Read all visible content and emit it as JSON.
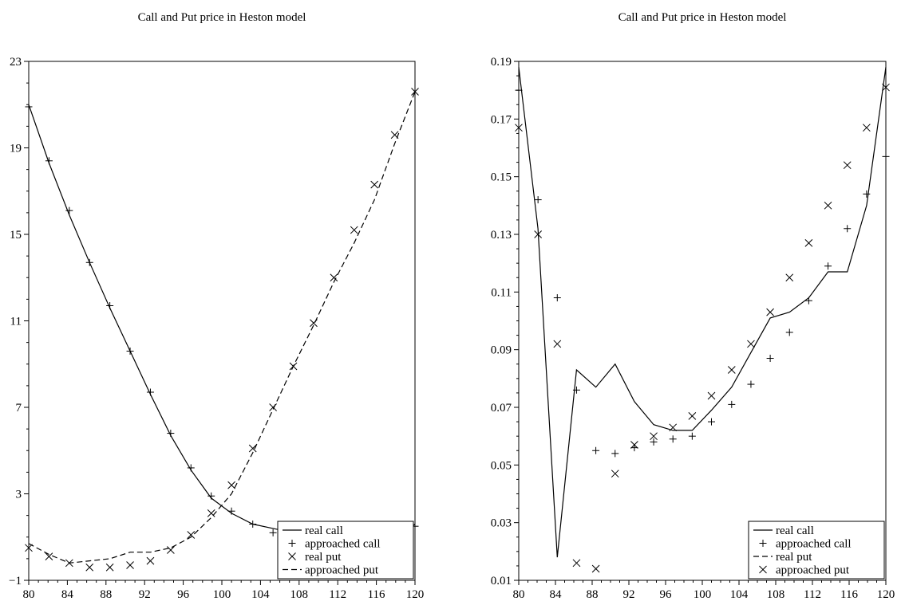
{
  "chart_data": [
    {
      "type": "line",
      "title": "Call and Put price in Heston model",
      "xlabel": "",
      "ylabel": "",
      "xlim": [
        80,
        120
      ],
      "ylim": [
        -1,
        23
      ],
      "x_ticks": [
        "80",
        "84",
        "88",
        "92",
        "96",
        "100",
        "104",
        "108",
        "112",
        "116",
        "120"
      ],
      "y_ticks": [
        "−1",
        "3",
        "7",
        "11",
        "15",
        "19",
        "23"
      ],
      "legend_position": "bottom-right",
      "legend": [
        "real call",
        "approached call",
        "real put",
        "approached put"
      ],
      "series": [
        {
          "name": "real call",
          "style": "solid",
          "marker": "none",
          "x": [
            80,
            82.1,
            84.2,
            86.3,
            88.4,
            90.5,
            92.6,
            94.7,
            96.8,
            98.9,
            101,
            103.2,
            105.3,
            107.4,
            109.5,
            111.6,
            113.7,
            115.8,
            117.9,
            120
          ],
          "y": [
            21,
            18.3,
            15.9,
            13.7,
            11.6,
            9.6,
            7.6,
            5.7,
            4.1,
            2.8,
            2.1,
            1.6,
            1.4,
            1.2,
            1.0,
            0.9,
            0.8,
            0.6,
            0.8,
            1.6
          ]
        },
        {
          "name": "approached call",
          "style": "none",
          "marker": "plus",
          "x": [
            80,
            82.1,
            84.2,
            86.3,
            88.4,
            90.5,
            92.6,
            94.7,
            96.8,
            98.9,
            101,
            103.2,
            105.3,
            106.8,
            107.4,
            109.5,
            111.6,
            113.7,
            115.8,
            117.9,
            120
          ],
          "y": [
            20.9,
            18.4,
            16.1,
            13.7,
            11.7,
            9.6,
            7.7,
            5.8,
            4.2,
            2.9,
            2.2,
            1.6,
            1.2,
            1.1,
            0.9,
            0.8,
            0.7,
            0.8,
            0.8,
            0.8,
            1.5
          ]
        },
        {
          "name": "real put",
          "style": "none",
          "marker": "x",
          "x": [
            80,
            82.1,
            84.2,
            86.3,
            88.4,
            90.5,
            92.6,
            94.7,
            96.8,
            98.9,
            101,
            103.2,
            105.3,
            107.4,
            109.5,
            111.6,
            113.7,
            115.8,
            117.9,
            120
          ],
          "y": [
            0.5,
            0.1,
            -0.2,
            -0.4,
            -0.4,
            -0.3,
            -0.1,
            0.4,
            1.1,
            2.1,
            3.4,
            5.1,
            7.0,
            8.9,
            10.9,
            13.0,
            15.2,
            17.3,
            19.6,
            21.6
          ]
        },
        {
          "name": "approached put",
          "style": "dashed",
          "marker": "none",
          "x": [
            80,
            82.1,
            84.2,
            86.3,
            88.4,
            90.5,
            92.6,
            94.7,
            96.8,
            98.9,
            101,
            103.2,
            105.3,
            107.4,
            109.5,
            111.6,
            113.7,
            115.8,
            117.9,
            120
          ],
          "y": [
            0.7,
            0.2,
            -0.2,
            -0.1,
            0,
            0.3,
            0.3,
            0.5,
            1.0,
            1.9,
            3.0,
            4.9,
            6.9,
            8.9,
            10.8,
            12.8,
            14.6,
            16.6,
            19.2,
            21.6
          ]
        }
      ]
    },
    {
      "type": "line",
      "title": "Call and Put price in Heston model",
      "xlabel": "",
      "ylabel": "",
      "xlim": [
        80,
        120
      ],
      "ylim": [
        0.01,
        0.19
      ],
      "x_ticks": [
        "80",
        "84",
        "88",
        "92",
        "96",
        "100",
        "104",
        "108",
        "112",
        "116",
        "120"
      ],
      "y_ticks": [
        "0.01",
        "0.03",
        "0.05",
        "0.07",
        "0.09",
        "0.11",
        "0.13",
        "0.15",
        "0.17",
        "0.19"
      ],
      "legend_position": "bottom-right",
      "legend": [
        "real call",
        "approached call",
        "real put",
        "approached put"
      ],
      "series": [
        {
          "name": "real call",
          "style": "solid",
          "marker": "none",
          "x": [
            80,
            82.1,
            84.2,
            86.3,
            88.4,
            90.5,
            92.6,
            94.7,
            96.8,
            98.9,
            101,
            103.2,
            105.3,
            107.4,
            109.5,
            111.6,
            113.7,
            115.8,
            117.9,
            120
          ],
          "y": [
            0.188,
            0.132,
            0.018,
            0.083,
            0.077,
            0.085,
            0.072,
            0.064,
            0.062,
            0.062,
            0.069,
            0.077,
            0.089,
            0.101,
            0.103,
            0.108,
            0.117,
            0.117,
            0.14,
            0.188
          ]
        },
        {
          "name": "approached call",
          "style": "none",
          "marker": "plus",
          "x": [
            80,
            82.1,
            84.2,
            86.3,
            88.4,
            90.5,
            92.6,
            94.7,
            96.8,
            98.9,
            101,
            103.2,
            105.3,
            107.4,
            109.5,
            111.6,
            113.7,
            115.8,
            117.9,
            120
          ],
          "y": [
            0.18,
            0.142,
            0.108,
            0.076,
            0.055,
            0.054,
            0.056,
            0.058,
            0.059,
            0.06,
            0.065,
            0.071,
            0.078,
            0.087,
            0.096,
            0.107,
            0.119,
            0.132,
            0.144,
            0.157
          ]
        },
        {
          "name": "real put",
          "style": "dashed",
          "marker": "none",
          "x": [],
          "y": []
        },
        {
          "name": "approached put",
          "style": "none",
          "marker": "x",
          "x": [
            80,
            82.1,
            84.2,
            86.3,
            88.4,
            90.5,
            92.6,
            94.7,
            96.8,
            98.9,
            101,
            103.2,
            105.3,
            107.4,
            109.5,
            111.6,
            113.7,
            115.8,
            117.9,
            120
          ],
          "y": [
            0.167,
            0.13,
            0.092,
            0.016,
            0.014,
            0.047,
            0.057,
            0.06,
            0.063,
            0.067,
            0.074,
            0.083,
            0.092,
            0.103,
            0.115,
            0.127,
            0.14,
            0.154,
            0.167,
            0.181
          ]
        }
      ]
    }
  ]
}
